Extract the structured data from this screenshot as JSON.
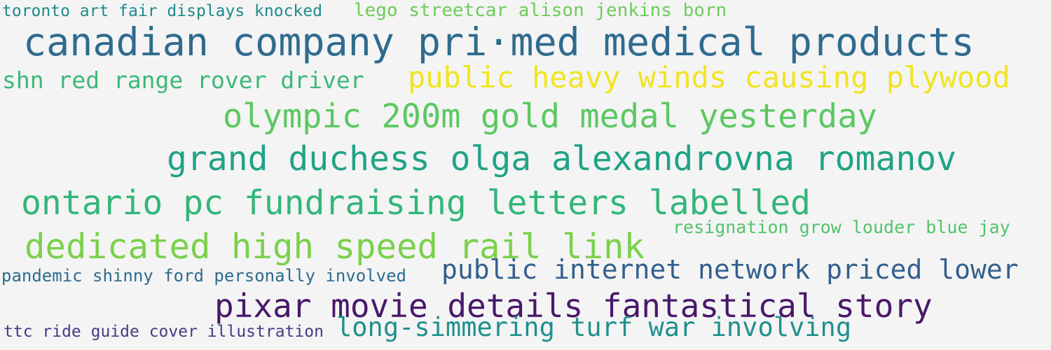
{
  "phrases": [
    {
      "id": "p1",
      "text": "toronto art fair displays knocked",
      "color": "#1f8a8a"
    },
    {
      "id": "p2",
      "text": "lego streetcar alison jenkins born",
      "color": "#6fcc5a"
    },
    {
      "id": "p3",
      "text": "canadian company pri·med medical products",
      "color": "#2f6b8e"
    },
    {
      "id": "p4",
      "text": "shn red range rover driver",
      "color": "#3db87a"
    },
    {
      "id": "p5",
      "text": "public heavy winds causing plywood",
      "color": "#f0e422"
    },
    {
      "id": "p6",
      "text": "olympic 200m gold medal yesterday",
      "color": "#5cc862"
    },
    {
      "id": "p7",
      "text": "grand duchess olga alexandrovna romanov",
      "color": "#20a386"
    },
    {
      "id": "p8",
      "text": "ontario pc fundraising letters labelled",
      "color": "#33b679"
    },
    {
      "id": "p9",
      "text": "resignation grow louder blue jay",
      "color": "#52c46a"
    },
    {
      "id": "p10",
      "text": "dedicated high speed rail link",
      "color": "#7ad14a"
    },
    {
      "id": "p11",
      "text": "pandemic shinny ford personally involved",
      "color": "#2e6b8f"
    },
    {
      "id": "p12",
      "text": "public internet network priced lower",
      "color": "#33608d"
    },
    {
      "id": "p13",
      "text": "pixar movie details fantastical story",
      "color": "#48186a"
    },
    {
      "id": "p14",
      "text": "ttc ride guide cover illustration",
      "color": "#433d84"
    },
    {
      "id": "p15",
      "text": "long-simmering turf war involving",
      "color": "#21908d"
    }
  ]
}
